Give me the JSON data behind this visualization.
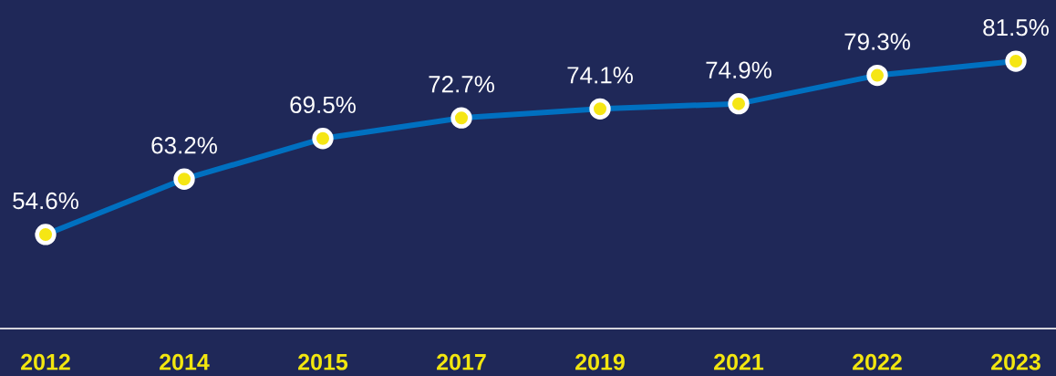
{
  "chart_data": {
    "type": "line",
    "categories": [
      "2012",
      "2014",
      "2015",
      "2017",
      "2019",
      "2021",
      "2022",
      "2023"
    ],
    "series": [
      {
        "color": "#0070c0",
        "values": [
          54.6,
          63.2,
          69.5,
          72.7,
          74.1,
          74.9,
          79.3,
          81.5
        ],
        "value_labels": [
          "54.6%",
          "63.2%",
          "69.5%",
          "72.7%",
          "74.1%",
          "74.9%",
          "79.3%",
          "81.5%"
        ]
      }
    ],
    "ylim": [
      40,
      91
    ],
    "marker": "circle",
    "line_style": "solid",
    "tick_labels": "x"
  }
}
